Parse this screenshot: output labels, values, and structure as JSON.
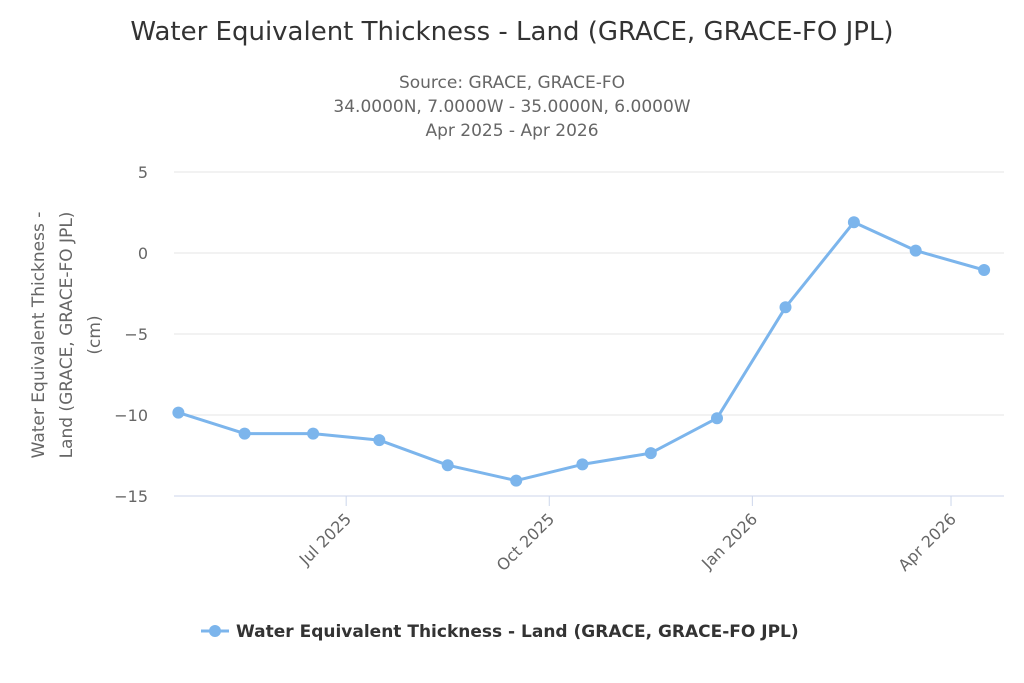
{
  "chart_data": {
    "type": "line",
    "title": "Water Equivalent Thickness - Land (GRACE, GRACE-FO JPL)",
    "subtitle": [
      "Source: GRACE, GRACE-FO",
      "34.0000N, 7.0000W - 35.0000N, 6.0000W",
      "Apr 2025 - Apr 2026"
    ],
    "ylabel": [
      "Water Equivalent Thickness -",
      "Land (GRACE, GRACE-FO JPL)",
      "(cm)"
    ],
    "ylim": [
      -15,
      5
    ],
    "yticks": [
      5,
      0,
      -5,
      -10,
      -15
    ],
    "ytick_labels": [
      "5",
      "0",
      "−5",
      "−10",
      "−15"
    ],
    "xlim": [
      "2025-04-14",
      "2026-04-25"
    ],
    "xticks": [
      {
        "date": "2025-07-01",
        "label": "Jul 2025"
      },
      {
        "date": "2025-10-01",
        "label": "Oct 2025"
      },
      {
        "date": "2026-01-01",
        "label": "Jan 2026"
      },
      {
        "date": "2026-04-01",
        "label": "Apr 2026"
      }
    ],
    "grid": true,
    "legend_placement": "bottom-center",
    "series": [
      {
        "name": "Water Equivalent Thickness - Land (GRACE, GRACE-FO JPL)",
        "color": "#7cb5ec",
        "x": [
          "2025-04-16",
          "2025-05-16",
          "2025-06-16",
          "2025-07-16",
          "2025-08-16",
          "2025-09-16",
          "2025-10-16",
          "2025-11-16",
          "2025-12-16",
          "2026-01-16",
          "2026-02-16",
          "2026-03-16",
          "2026-04-16"
        ],
        "y": [
          -9.85,
          -11.15,
          -11.15,
          -11.55,
          -13.1,
          -14.05,
          -13.05,
          -12.35,
          -10.2,
          -3.35,
          1.9,
          0.15,
          -1.05
        ]
      }
    ]
  }
}
